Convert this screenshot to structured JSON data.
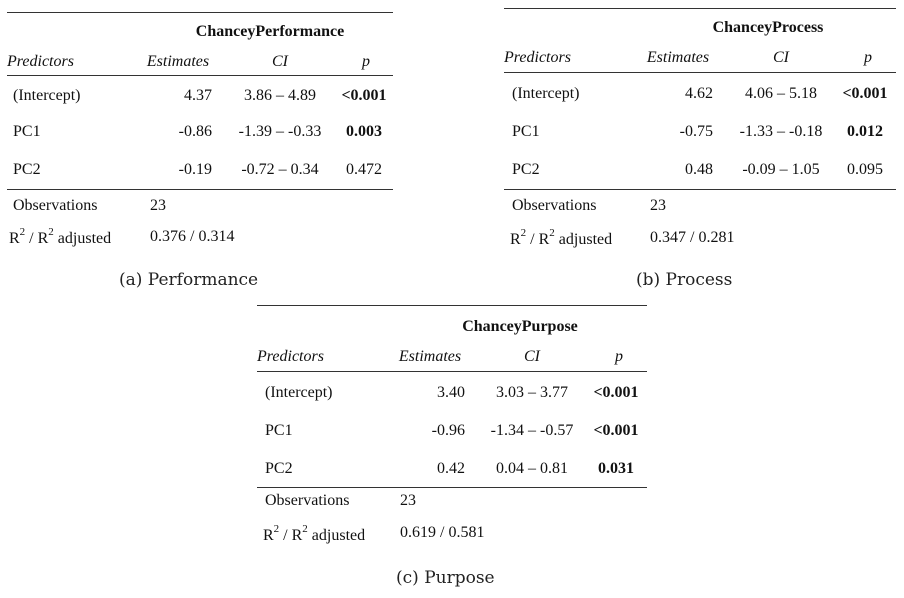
{
  "tables": [
    {
      "title": "ChanceyPerformance",
      "headers": [
        "Predictors",
        "Estimates",
        "CI",
        "p"
      ],
      "rows": [
        {
          "predictor": "(Intercept)",
          "estimate": "4.37",
          "ci": "3.86 – 4.89",
          "p": "<0.001",
          "bold": true
        },
        {
          "predictor": "PC1",
          "estimate": "-0.86",
          "ci": "-1.39 – -0.33",
          "p": "0.003",
          "bold": true
        },
        {
          "predictor": "PC2",
          "estimate": "-0.19",
          "ci": "-0.72 – 0.34",
          "p": "0.472",
          "bold": false
        }
      ],
      "observations_label": "Observations",
      "observations": "23",
      "r2_label": "adjusted",
      "r2": "0.376 / 0.314",
      "caption": "(a) Performance"
    },
    {
      "title": "ChanceyProcess",
      "headers": [
        "Predictors",
        "Estimates",
        "CI",
        "p"
      ],
      "rows": [
        {
          "predictor": "(Intercept)",
          "estimate": "4.62",
          "ci": "4.06 – 5.18",
          "p": "<0.001",
          "bold": true
        },
        {
          "predictor": "PC1",
          "estimate": "-0.75",
          "ci": "-1.33 – -0.18",
          "p": "0.012",
          "bold": true
        },
        {
          "predictor": "PC2",
          "estimate": "0.48",
          "ci": "-0.09 – 1.05",
          "p": "0.095",
          "bold": false
        }
      ],
      "observations_label": "Observations",
      "observations": "23",
      "r2_label": "adjusted",
      "r2": "0.347 / 0.281",
      "caption": "(b) Process"
    },
    {
      "title": "ChanceyPurpose",
      "headers": [
        "Predictors",
        "Estimates",
        "CI",
        "p"
      ],
      "rows": [
        {
          "predictor": "(Intercept)",
          "estimate": "3.40",
          "ci": "3.03 – 3.77",
          "p": "<0.001",
          "bold": true
        },
        {
          "predictor": "PC1",
          "estimate": "-0.96",
          "ci": "-1.34 – -0.57",
          "p": "<0.001",
          "bold": true
        },
        {
          "predictor": "PC2",
          "estimate": "0.42",
          "ci": "0.04 – 0.81",
          "p": "0.031",
          "bold": true
        }
      ],
      "observations_label": "Observations",
      "observations": "23",
      "r2_label": "adjusted",
      "r2": "0.619 / 0.581",
      "caption": "(c) Purpose"
    }
  ]
}
